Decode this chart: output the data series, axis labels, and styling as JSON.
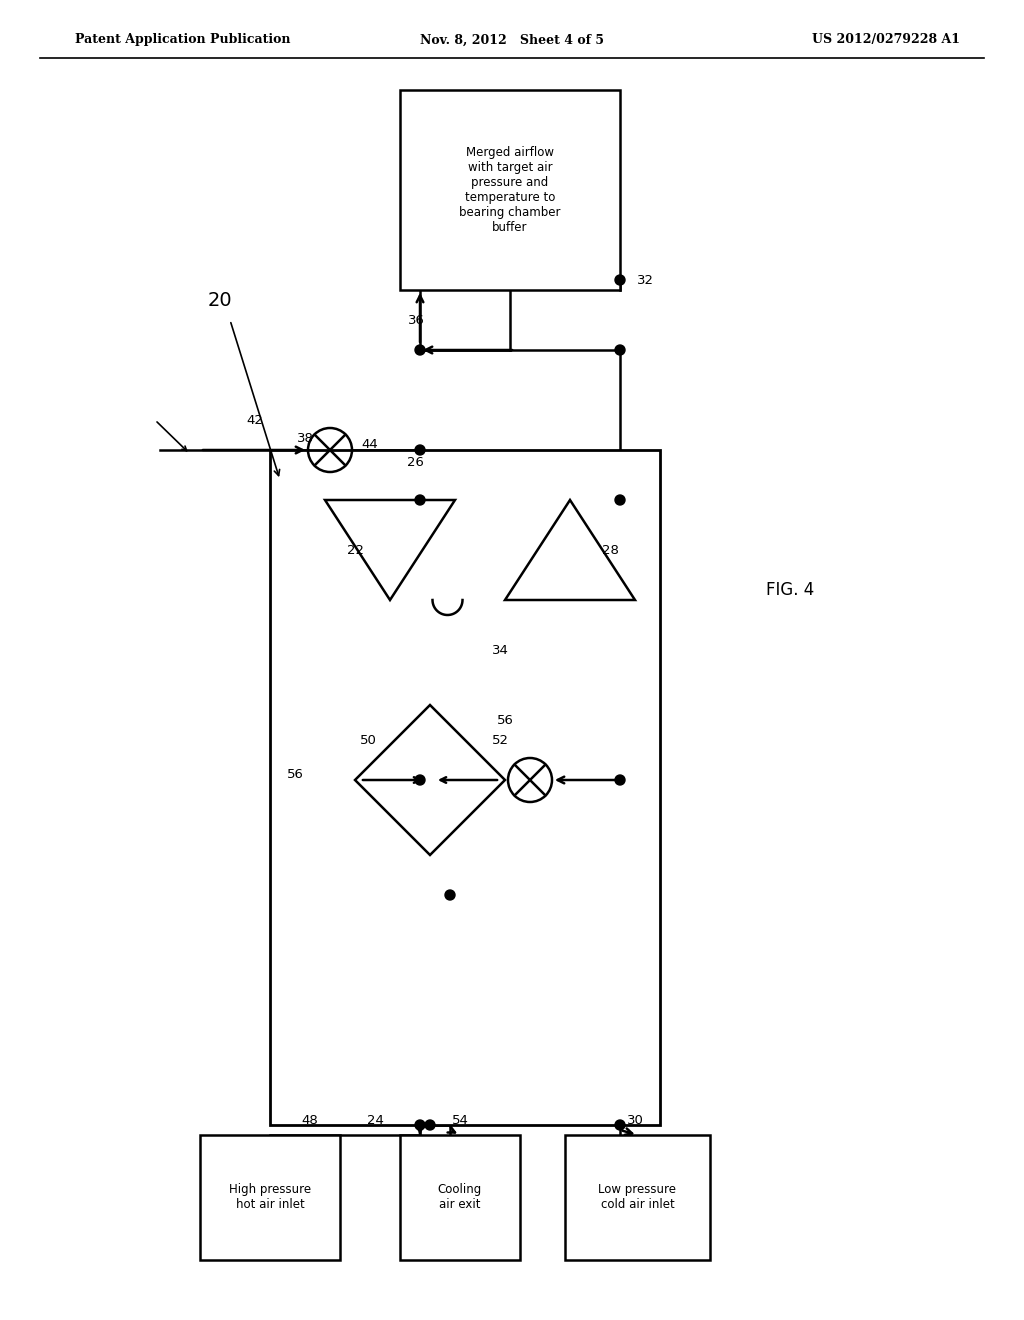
{
  "bg_color": "#ffffff",
  "line_color": "#000000",
  "header_left": "Patent Application Publication",
  "header_mid": "Nov. 8, 2012   Sheet 4 of 5",
  "header_right": "US 2012/0279228 A1",
  "fig_label": "FIG. 4",
  "system_label": "20",
  "box_top_text": "Merged airflow\nwith target air\npressure and\ntemperature to\nbearing chamber\nbuffer",
  "box_bottom_left_text": "High pressure\nhot air inlet",
  "box_bottom_mid_text": "Cooling\nair exit",
  "box_bottom_right_text": "Low pressure\ncold air inlet"
}
